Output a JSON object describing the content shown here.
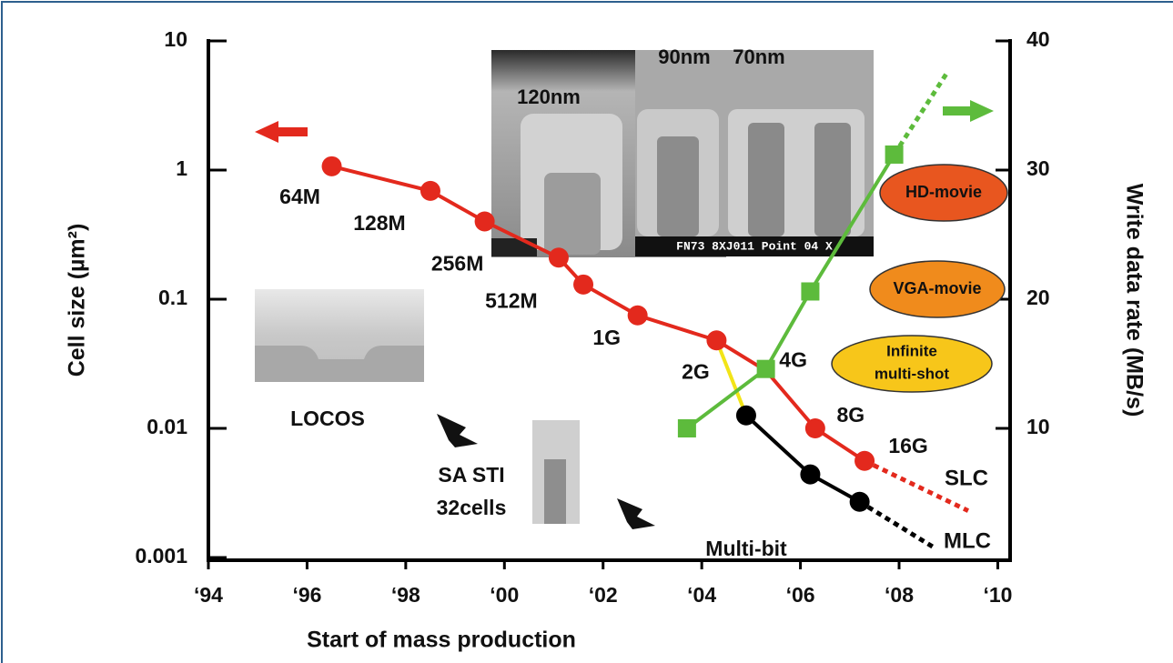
{
  "chart_data": {
    "type": "line",
    "xlabel": "Start of mass production",
    "ylabel": "Cell size (µm²)",
    "y2label": "Write data rate (MB/s)",
    "xlim": [
      1994,
      2010.25
    ],
    "xticks": [
      {
        "value": 1994,
        "label": "‘94"
      },
      {
        "value": 1996,
        "label": "‘96"
      },
      {
        "value": 1998,
        "label": "‘98"
      },
      {
        "value": 2000,
        "label": "‘00"
      },
      {
        "value": 2002,
        "label": "‘02"
      },
      {
        "value": 2004,
        "label": "‘04"
      },
      {
        "value": 2006,
        "label": "‘06"
      },
      {
        "value": 2008,
        "label": "‘08"
      },
      {
        "value": 2010,
        "label": "‘10"
      }
    ],
    "yscale": "log",
    "ylim": [
      0.001,
      10
    ],
    "yticks": [
      0.001,
      0.01,
      0.1,
      1,
      10
    ],
    "y2lim": [
      0,
      40
    ],
    "y2ticks": [
      10,
      20,
      30,
      40
    ],
    "series": [
      {
        "name": "SLC",
        "color": "#e3291d",
        "x": [
          1996.5,
          1998.5,
          1999.6,
          2001.1,
          2001.6,
          2002.7,
          2004.3,
          2005.3,
          2006.3,
          2007.3
        ],
        "values": [
          1.07,
          0.69,
          0.4,
          0.21,
          0.13,
          0.075,
          0.048,
          0.028,
          0.01,
          0.0056
        ],
        "markers": [
          "circle",
          "circle",
          "circle",
          "circle",
          "circle",
          "circle",
          "circle",
          null,
          "circle",
          "circle"
        ],
        "point_labels": [
          "64M",
          "128M",
          "256M",
          "512M",
          null,
          "1G",
          "2G",
          "4G",
          "8G",
          "16G"
        ]
      },
      {
        "color": "#e3291d",
        "linestyle": "dotted",
        "x": [
          2007.3,
          2009.4
        ],
        "values": [
          0.0056,
          0.0023
        ]
      },
      {
        "color": "#f2e418",
        "x": [
          2004.3,
          2004.9
        ],
        "values": [
          0.048,
          0.0126
        ]
      },
      {
        "name": "MLC",
        "color": "#000000",
        "x": [
          2004.9,
          2006.2,
          2007.2
        ],
        "values": [
          0.0126,
          0.0044,
          0.0027
        ],
        "markers": [
          "circle",
          "circle",
          "circle"
        ]
      },
      {
        "color": "#000000",
        "linestyle": "dotted",
        "x": [
          2007.2,
          2008.7
        ],
        "values": [
          0.0027,
          0.0012
        ]
      },
      {
        "color": "#5dbb3c",
        "axis": "y2",
        "x": [
          2003.7,
          2005.3,
          2006.2,
          2007.9
        ],
        "values": [
          10,
          14.6,
          20.6,
          31.2
        ],
        "markers": [
          "square",
          "square",
          "square",
          "square"
        ]
      },
      {
        "color": "#5dbb3c",
        "axis": "y2",
        "linestyle": "dotted",
        "x": [
          2007.9,
          2009.0
        ],
        "values": [
          31.2,
          37.7
        ]
      }
    ],
    "annotations": [
      "120nm",
      "90nm",
      "70nm",
      "FN73 8XJ011 Point 04 X",
      "LOCOS",
      [
        "SA STI",
        "32cells"
      ],
      "Multi-bit",
      "HD-movie",
      "VGA-movie",
      [
        "Infinite",
        "multi-shot"
      ]
    ]
  }
}
